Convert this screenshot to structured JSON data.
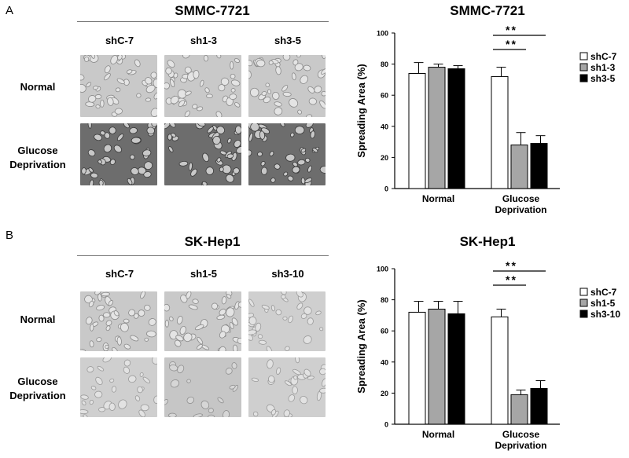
{
  "panels": [
    {
      "letter": "A",
      "title": "SMMC-7721",
      "columns": [
        "shC-7",
        "sh1-3",
        "sh3-5"
      ],
      "rows": [
        {
          "line1": "Normal",
          "line2": ""
        },
        {
          "line1": "Glucose",
          "line2": "Deprivation"
        }
      ],
      "chart_title": "SMMC-7721"
    },
    {
      "letter": "B",
      "title": "SK-Hep1",
      "columns": [
        "shC-7",
        "sh1-5",
        "sh3-10"
      ],
      "rows": [
        {
          "line1": "Normal",
          "line2": ""
        },
        {
          "line1": "Glucose",
          "line2": "Deprivation"
        }
      ],
      "chart_title": "SK-Hep1"
    }
  ],
  "chart_data": [
    {
      "type": "bar",
      "title": "SMMC-7721",
      "ylabel": "Spreading Area (%)",
      "xlabel": "",
      "ylim": [
        0,
        100
      ],
      "yticks": [
        0,
        20,
        40,
        60,
        80,
        100
      ],
      "categories": [
        "Normal",
        "Glucose Deprivation"
      ],
      "series": [
        {
          "name": "shC-7",
          "values": [
            74,
            72
          ],
          "errors": [
            7,
            6
          ],
          "color": "#ffffff"
        },
        {
          "name": "sh1-3",
          "values": [
            78,
            28
          ],
          "errors": [
            2,
            8
          ],
          "color": "#a6a6a6"
        },
        {
          "name": "sh3-5",
          "values": [
            77,
            29
          ],
          "errors": [
            2,
            5
          ],
          "color": "#000000"
        }
      ],
      "significance": [
        {
          "label": "**",
          "from_series": 0,
          "to_series": 1,
          "category": 1
        },
        {
          "label": "**",
          "from_series": 0,
          "to_series": 2,
          "category": 1
        }
      ],
      "legend": "top-right",
      "grid": false
    },
    {
      "type": "bar",
      "title": "SK-Hep1",
      "ylabel": "Spreading Area (%)",
      "xlabel": "",
      "ylim": [
        0,
        100
      ],
      "yticks": [
        0,
        20,
        40,
        60,
        80,
        100
      ],
      "categories": [
        "Normal",
        "Glucose Deprivation"
      ],
      "series": [
        {
          "name": "shC-7",
          "values": [
            72,
            69
          ],
          "errors": [
            7,
            5
          ],
          "color": "#ffffff"
        },
        {
          "name": "sh1-5",
          "values": [
            74,
            19
          ],
          "errors": [
            5,
            3
          ],
          "color": "#a6a6a6"
        },
        {
          "name": "sh3-10",
          "values": [
            71,
            23
          ],
          "errors": [
            8,
            5
          ],
          "color": "#000000"
        }
      ],
      "significance": [
        {
          "label": "**",
          "from_series": 0,
          "to_series": 1,
          "category": 1
        },
        {
          "label": "**",
          "from_series": 0,
          "to_series": 2,
          "category": 1
        }
      ],
      "legend": "top-right",
      "grid": false
    }
  ]
}
